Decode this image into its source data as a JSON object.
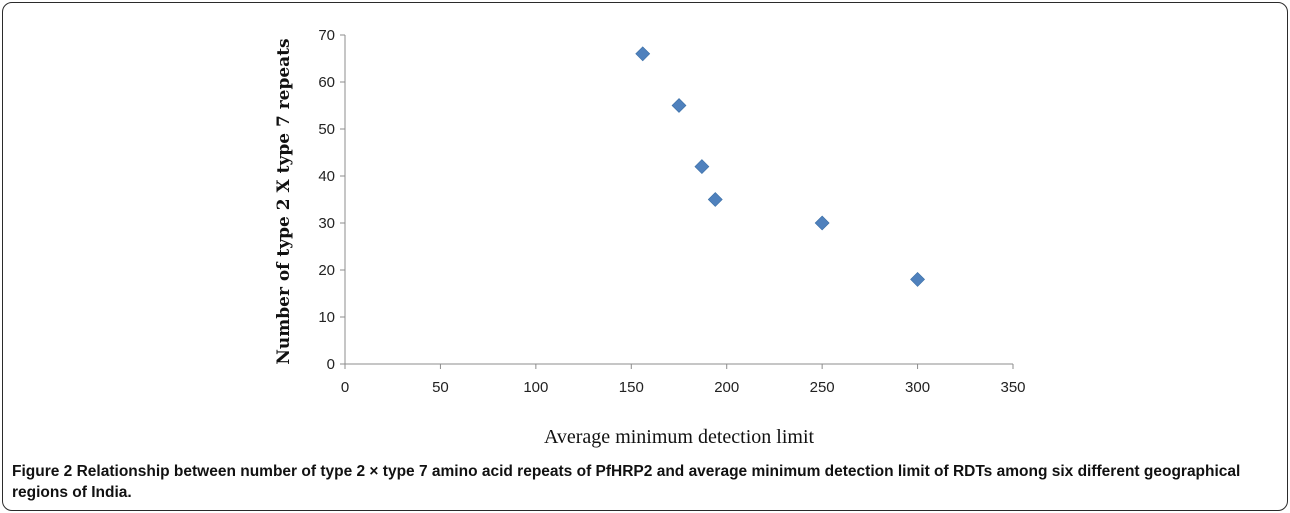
{
  "chart_data": {
    "type": "scatter",
    "title": "",
    "xlabel": "Average minimum detection limit",
    "ylabel": "Number of type 2 X type 7 repeats",
    "xlim": [
      0,
      350
    ],
    "ylim": [
      0,
      70
    ],
    "xticks": [
      0,
      50,
      100,
      150,
      200,
      250,
      300,
      350
    ],
    "yticks": [
      0,
      10,
      20,
      30,
      40,
      50,
      60,
      70
    ],
    "marker": "diamond",
    "color": "#4F81BD",
    "grid": false,
    "legend": "none",
    "points": [
      {
        "x": 156,
        "y": 66
      },
      {
        "x": 175,
        "y": 55
      },
      {
        "x": 187,
        "y": 42
      },
      {
        "x": 194,
        "y": 35
      },
      {
        "x": 250,
        "y": 30
      },
      {
        "x": 300,
        "y": 18
      }
    ]
  },
  "caption": {
    "label": "Figure 2",
    "text": "Relationship between number of type 2 × type 7 amino acid repeats of PfHRP2 and average minimum detection limit of RDTs among six different geographical regions of India."
  }
}
